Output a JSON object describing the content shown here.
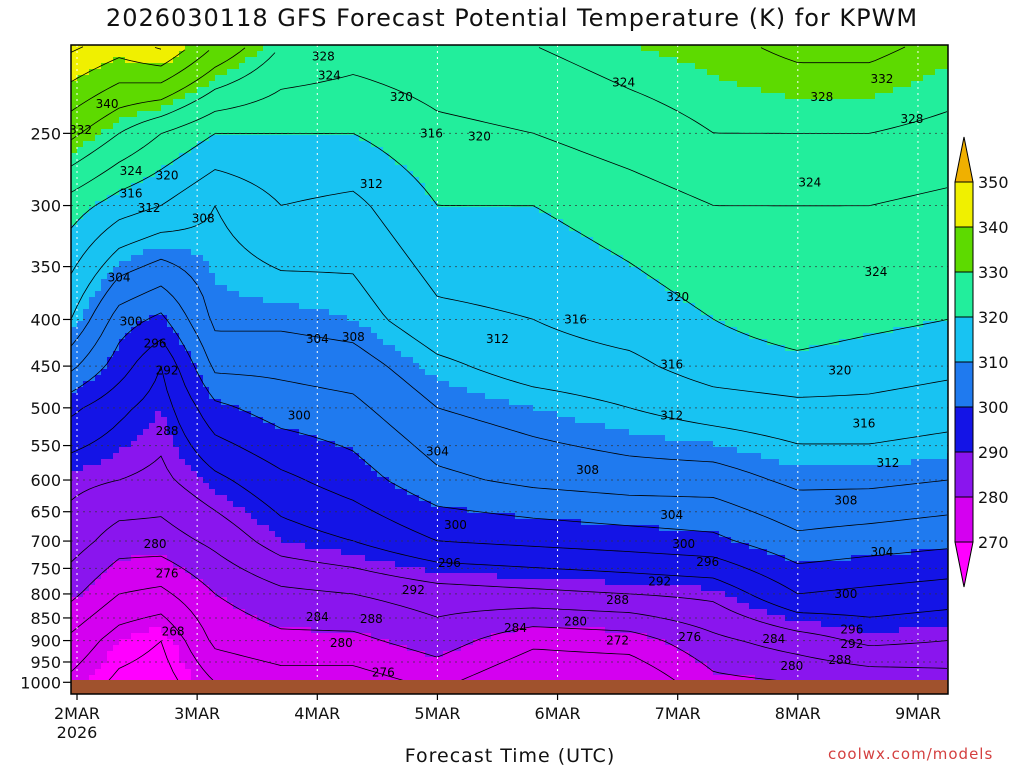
{
  "title": "2026030118 GFS Forecast Potential Temperature (K) for KPWM",
  "credit": "coolwx.com/models",
  "chart_data": {
    "type": "heatmap",
    "title": "2026030118 GFS Forecast Potential Temperature (K) for KPWM",
    "xlabel": "Forecast Time (UTC)",
    "ylabel": "",
    "x_ticks": [
      {
        "label": "2MAR",
        "sublabel": "2026",
        "day": 2
      },
      {
        "label": "3MAR",
        "sublabel": "",
        "day": 3
      },
      {
        "label": "4MAR",
        "sublabel": "",
        "day": 4
      },
      {
        "label": "5MAR",
        "sublabel": "",
        "day": 5
      },
      {
        "label": "6MAR",
        "sublabel": "",
        "day": 6
      },
      {
        "label": "7MAR",
        "sublabel": "",
        "day": 7
      },
      {
        "label": "8MAR",
        "sublabel": "",
        "day": 8
      },
      {
        "label": "9MAR",
        "sublabel": "",
        "day": 9
      }
    ],
    "xlim_days": [
      1.95,
      9.25
    ],
    "y_ticks_hpa": [
      250,
      300,
      350,
      400,
      450,
      500,
      550,
      600,
      650,
      700,
      750,
      800,
      850,
      900,
      950,
      1000
    ],
    "ylim_hpa": [
      200,
      1030
    ],
    "y_scale": "log",
    "grid": true,
    "colorbar": {
      "levels": [
        270,
        280,
        290,
        300,
        310,
        320,
        330,
        340,
        350
      ],
      "colors": [
        "#ff00ff",
        "#d400f0",
        "#8a15ee",
        "#1414e6",
        "#1f7aef",
        "#18c3f2",
        "#22ee9c",
        "#5dda00",
        "#f0f000",
        "#f0b000"
      ],
      "extend": "both"
    },
    "profiles": [
      {
        "day": 1.95,
        "levels": [
          [
            1000,
            271
          ],
          [
            900,
            275
          ],
          [
            800,
            281
          ],
          [
            700,
            286
          ],
          [
            600,
            289
          ],
          [
            500,
            297
          ],
          [
            450,
            305
          ],
          [
            400,
            312
          ],
          [
            300,
            322
          ],
          [
            250,
            333
          ],
          [
            200,
            345
          ]
        ]
      },
      {
        "day": 2.35,
        "levels": [
          [
            1000,
            267
          ],
          [
            900,
            270
          ],
          [
            800,
            276
          ],
          [
            700,
            282
          ],
          [
            600,
            288
          ],
          [
            500,
            293
          ],
          [
            450,
            298
          ],
          [
            400,
            302
          ],
          [
            300,
            318
          ],
          [
            250,
            328
          ],
          [
            200,
            342
          ]
        ]
      },
      {
        "day": 2.7,
        "levels": [
          [
            1000,
            266
          ],
          [
            900,
            268
          ],
          [
            800,
            275
          ],
          [
            700,
            282
          ],
          [
            600,
            287
          ],
          [
            500,
            290
          ],
          [
            450,
            292
          ],
          [
            400,
            299
          ],
          [
            300,
            316
          ],
          [
            250,
            324
          ],
          [
            200,
            345
          ]
        ]
      },
      {
        "day": 3.15,
        "levels": [
          [
            1000,
            272
          ],
          [
            900,
            277
          ],
          [
            800,
            280
          ],
          [
            700,
            285
          ],
          [
            600,
            291
          ],
          [
            500,
            299
          ],
          [
            450,
            305
          ],
          [
            400,
            309
          ],
          [
            300,
            312
          ],
          [
            250,
            320
          ],
          [
            200,
            336
          ]
        ]
      },
      {
        "day": 3.7,
        "levels": [
          [
            1000,
            274
          ],
          [
            900,
            279
          ],
          [
            800,
            283
          ],
          [
            700,
            290
          ],
          [
            600,
            295
          ],
          [
            500,
            302
          ],
          [
            450,
            305
          ],
          [
            400,
            309
          ],
          [
            300,
            316
          ],
          [
            250,
            320
          ],
          [
            200,
            328
          ]
        ]
      },
      {
        "day": 4.3,
        "levels": [
          [
            1000,
            274
          ],
          [
            900,
            279
          ],
          [
            800,
            284
          ],
          [
            700,
            292
          ],
          [
            600,
            298
          ],
          [
            500,
            303
          ],
          [
            450,
            306
          ],
          [
            400,
            310
          ],
          [
            300,
            315
          ],
          [
            250,
            320
          ],
          [
            200,
            326
          ]
        ]
      },
      {
        "day": 5.0,
        "levels": [
          [
            1000,
            277
          ],
          [
            900,
            282
          ],
          [
            800,
            286
          ],
          [
            700,
            296
          ],
          [
            600,
            303
          ],
          [
            500,
            308
          ],
          [
            450,
            311
          ],
          [
            400,
            315
          ],
          [
            300,
            320
          ],
          [
            250,
            323
          ],
          [
            200,
            327
          ]
        ]
      },
      {
        "day": 5.8,
        "levels": [
          [
            1000,
            272
          ],
          [
            900,
            277
          ],
          [
            800,
            287
          ],
          [
            700,
            297
          ],
          [
            600,
            305
          ],
          [
            500,
            310
          ],
          [
            450,
            314
          ],
          [
            400,
            316
          ],
          [
            300,
            320
          ],
          [
            250,
            324
          ],
          [
            200,
            328
          ]
        ]
      },
      {
        "day": 6.6,
        "levels": [
          [
            1000,
            272
          ],
          [
            900,
            278
          ],
          [
            800,
            288
          ],
          [
            700,
            298
          ],
          [
            600,
            306
          ],
          [
            500,
            312
          ],
          [
            450,
            315
          ],
          [
            400,
            318
          ],
          [
            300,
            322
          ],
          [
            250,
            326
          ],
          [
            200,
            330
          ]
        ]
      },
      {
        "day": 7.3,
        "levels": [
          [
            1000,
            279
          ],
          [
            900,
            283
          ],
          [
            800,
            289
          ],
          [
            700,
            299
          ],
          [
            600,
            306
          ],
          [
            500,
            314
          ],
          [
            450,
            318
          ],
          [
            400,
            320
          ],
          [
            300,
            324
          ],
          [
            250,
            328
          ],
          [
            200,
            331
          ]
        ]
      },
      {
        "day": 8.0,
        "levels": [
          [
            1000,
            280
          ],
          [
            900,
            286
          ],
          [
            800,
            296
          ],
          [
            700,
            303
          ],
          [
            600,
            309
          ],
          [
            500,
            315
          ],
          [
            450,
            319
          ],
          [
            400,
            322
          ],
          [
            300,
            324
          ],
          [
            250,
            328
          ],
          [
            200,
            333
          ]
        ]
      },
      {
        "day": 8.6,
        "levels": [
          [
            1000,
            281
          ],
          [
            900,
            289
          ],
          [
            800,
            295
          ],
          [
            700,
            302
          ],
          [
            600,
            309
          ],
          [
            500,
            315
          ],
          [
            450,
            318
          ],
          [
            400,
            321
          ],
          [
            300,
            324
          ],
          [
            250,
            328
          ],
          [
            200,
            333
          ]
        ]
      },
      {
        "day": 9.25,
        "levels": [
          [
            1000,
            282
          ],
          [
            900,
            288
          ],
          [
            800,
            294
          ],
          [
            700,
            301
          ],
          [
            600,
            308
          ],
          [
            500,
            314
          ],
          [
            450,
            317
          ],
          [
            400,
            320
          ],
          [
            300,
            323
          ],
          [
            250,
            327
          ],
          [
            200,
            331
          ]
        ]
      }
    ],
    "contour_labels": [
      {
        "text": "340",
        "day": 2.25,
        "hpa": 232
      },
      {
        "text": "332",
        "day": 2.03,
        "hpa": 248
      },
      {
        "text": "324",
        "day": 2.45,
        "hpa": 275
      },
      {
        "text": "320",
        "day": 2.75,
        "hpa": 278
      },
      {
        "text": "316",
        "day": 2.45,
        "hpa": 291
      },
      {
        "text": "312",
        "day": 2.6,
        "hpa": 302
      },
      {
        "text": "308",
        "day": 3.05,
        "hpa": 310
      },
      {
        "text": "304",
        "day": 2.35,
        "hpa": 360
      },
      {
        "text": "300",
        "day": 2.45,
        "hpa": 402
      },
      {
        "text": "296",
        "day": 2.65,
        "hpa": 425
      },
      {
        "text": "292",
        "day": 2.75,
        "hpa": 455
      },
      {
        "text": "288",
        "day": 2.75,
        "hpa": 530
      },
      {
        "text": "280",
        "day": 2.65,
        "hpa": 705
      },
      {
        "text": "276",
        "day": 2.75,
        "hpa": 760
      },
      {
        "text": "268",
        "day": 2.8,
        "hpa": 880
      },
      {
        "text": "328",
        "day": 4.05,
        "hpa": 206
      },
      {
        "text": "324",
        "day": 4.1,
        "hpa": 216
      },
      {
        "text": "320",
        "day": 4.7,
        "hpa": 228
      },
      {
        "text": "316",
        "day": 4.95,
        "hpa": 250
      },
      {
        "text": "320",
        "day": 5.35,
        "hpa": 252
      },
      {
        "text": "312",
        "day": 4.45,
        "hpa": 284
      },
      {
        "text": "324",
        "day": 6.55,
        "hpa": 220
      },
      {
        "text": "332",
        "day": 8.7,
        "hpa": 218
      },
      {
        "text": "328",
        "day": 8.2,
        "hpa": 228
      },
      {
        "text": "328",
        "day": 8.95,
        "hpa": 241
      },
      {
        "text": "324",
        "day": 8.1,
        "hpa": 283
      },
      {
        "text": "324",
        "day": 8.65,
        "hpa": 355
      },
      {
        "text": "320",
        "day": 7.0,
        "hpa": 378
      },
      {
        "text": "316",
        "day": 6.15,
        "hpa": 400
      },
      {
        "text": "312",
        "day": 5.5,
        "hpa": 420
      },
      {
        "text": "316",
        "day": 6.95,
        "hpa": 448
      },
      {
        "text": "320",
        "day": 8.35,
        "hpa": 455
      },
      {
        "text": "312",
        "day": 6.95,
        "hpa": 510
      },
      {
        "text": "316",
        "day": 8.55,
        "hpa": 520
      },
      {
        "text": "312",
        "day": 8.75,
        "hpa": 575
      },
      {
        "text": "304",
        "day": 4.0,
        "hpa": 420
      },
      {
        "text": "308",
        "day": 4.3,
        "hpa": 418
      },
      {
        "text": "300",
        "day": 3.85,
        "hpa": 510
      },
      {
        "text": "304",
        "day": 5.0,
        "hpa": 558
      },
      {
        "text": "308",
        "day": 6.25,
        "hpa": 585
      },
      {
        "text": "308",
        "day": 8.4,
        "hpa": 632
      },
      {
        "text": "304",
        "day": 6.95,
        "hpa": 655
      },
      {
        "text": "300",
        "day": 5.15,
        "hpa": 672
      },
      {
        "text": "300",
        "day": 7.05,
        "hpa": 705
      },
      {
        "text": "296",
        "day": 7.25,
        "hpa": 738
      },
      {
        "text": "304",
        "day": 8.7,
        "hpa": 720
      },
      {
        "text": "296",
        "day": 5.1,
        "hpa": 740
      },
      {
        "text": "292",
        "day": 6.85,
        "hpa": 775
      },
      {
        "text": "292",
        "day": 4.8,
        "hpa": 792
      },
      {
        "text": "288",
        "day": 6.5,
        "hpa": 812
      },
      {
        "text": "300",
        "day": 8.4,
        "hpa": 800
      },
      {
        "text": "284",
        "day": 4.0,
        "hpa": 848
      },
      {
        "text": "288",
        "day": 4.45,
        "hpa": 852
      },
      {
        "text": "280",
        "day": 6.15,
        "hpa": 858
      },
      {
        "text": "284",
        "day": 5.65,
        "hpa": 872
      },
      {
        "text": "296",
        "day": 8.45,
        "hpa": 875
      },
      {
        "text": "276",
        "day": 7.1,
        "hpa": 892
      },
      {
        "text": "284",
        "day": 7.8,
        "hpa": 896
      },
      {
        "text": "292",
        "day": 8.45,
        "hpa": 908
      },
      {
        "text": "272",
        "day": 6.5,
        "hpa": 900
      },
      {
        "text": "280",
        "day": 4.2,
        "hpa": 905
      },
      {
        "text": "288",
        "day": 8.35,
        "hpa": 945
      },
      {
        "text": "280",
        "day": 7.95,
        "hpa": 960
      },
      {
        "text": "276",
        "day": 4.55,
        "hpa": 975
      }
    ]
  }
}
